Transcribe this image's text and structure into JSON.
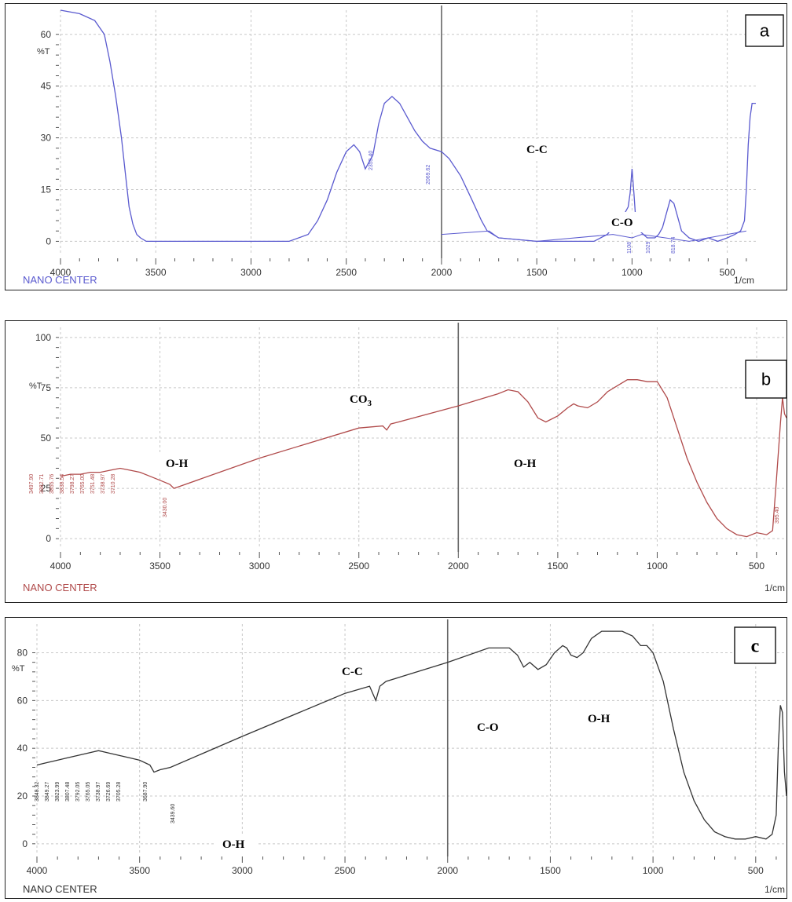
{
  "chart_data": [
    {
      "type": "line",
      "panel_letter": "a",
      "ylabel": "%T",
      "footer_left": "NANO CENTER",
      "footer_right": "1/cm",
      "x_ticks": [
        4000,
        3500,
        3000,
        2500,
        2000,
        1500,
        1000,
        500
      ],
      "y_ticks": [
        0,
        15,
        30,
        45,
        60
      ],
      "xlim": [
        4000,
        350
      ],
      "ylim": [
        -4,
        67
      ],
      "line_color": "#5a5acf",
      "series": [
        {
          "x": [
            4000,
            3900,
            3820,
            3770,
            3740,
            3710,
            3680,
            3660,
            3640,
            3620,
            3600,
            3580,
            3550,
            3500,
            3000,
            2800,
            2700,
            2650,
            2600,
            2550,
            2500,
            2460,
            2430,
            2400,
            2360,
            2330,
            2300,
            2260,
            2220,
            2180,
            2140,
            2100,
            2060,
            2000,
            1960,
            1900,
            1840,
            1790,
            1760,
            1700,
            1500,
            1200,
            1130,
            1100,
            1070,
            1040,
            1020,
            1010,
            1000,
            990,
            980,
            960,
            940,
            920,
            900,
            880,
            860,
            840,
            820,
            800,
            780,
            760,
            740,
            700,
            650,
            600,
            550,
            500,
            460,
            430,
            410,
            400,
            390,
            380,
            370,
            360,
            350
          ],
          "y": [
            67,
            66,
            64,
            60,
            52,
            42,
            30,
            20,
            10,
            5,
            2,
            1,
            0,
            0,
            0,
            0,
            2,
            6,
            12,
            20,
            26,
            28,
            26,
            21,
            25,
            34,
            40,
            42,
            40,
            36,
            32,
            29,
            27,
            26,
            24,
            19,
            12,
            6,
            3,
            1,
            0,
            0,
            2,
            4,
            6,
            8,
            10,
            14,
            21,
            14,
            6,
            3,
            2,
            1,
            1,
            1,
            2,
            4,
            8,
            12,
            11,
            7,
            3,
            1,
            0,
            1,
            0,
            1,
            2,
            3,
            6,
            15,
            28,
            36,
            40,
            40,
            40
          ]
        }
      ],
      "peak_labels": [
        "2359.40",
        "2069.62",
        "1108",
        "1029",
        "818.74"
      ],
      "annotations": [
        "C-C",
        "C-O"
      ]
    },
    {
      "type": "line",
      "panel_letter": "b",
      "ylabel": "%T",
      "footer_left": "NANO CENTER",
      "footer_right": "1/cm",
      "x_ticks": [
        4000,
        3500,
        3000,
        2500,
        2000,
        1500,
        1000,
        500
      ],
      "y_ticks": [
        0,
        25,
        50,
        75,
        100
      ],
      "xlim": [
        4000,
        350
      ],
      "ylim": [
        -5,
        105
      ],
      "line_color": "#b04a4a",
      "series": [
        {
          "x": [
            4000,
            3950,
            3900,
            3850,
            3800,
            3750,
            3700,
            3650,
            3600,
            3550,
            3500,
            3450,
            3430,
            3400,
            3000,
            2500,
            2380,
            2360,
            2340,
            2300,
            2000,
            1800,
            1750,
            1700,
            1650,
            1600,
            1560,
            1500,
            1450,
            1420,
            1400,
            1350,
            1300,
            1250,
            1200,
            1150,
            1100,
            1050,
            1000,
            950,
            900,
            850,
            800,
            750,
            700,
            650,
            600,
            550,
            500,
            450,
            420,
            400,
            380,
            370,
            360,
            350
          ],
          "y": [
            31,
            32,
            32,
            33,
            33,
            34,
            35,
            34,
            33,
            31,
            29,
            27,
            25,
            26,
            40,
            55,
            56,
            54,
            57,
            58,
            66,
            72,
            74,
            73,
            68,
            60,
            58,
            61,
            65,
            67,
            66,
            65,
            68,
            73,
            76,
            79,
            79,
            78,
            78,
            70,
            55,
            40,
            28,
            18,
            10,
            5,
            2,
            1,
            3,
            2,
            4,
            30,
            58,
            70,
            62,
            60
          ]
        }
      ],
      "peak_labels": [
        "3497.90",
        "3882.71",
        "3855.76",
        "3838.54",
        "3798.27",
        "3765.00",
        "3751.48",
        "3738.97",
        "3710.28",
        "3430.00",
        "395.40"
      ],
      "annotations": [
        "CO3",
        "O-H",
        "O-H"
      ]
    },
    {
      "type": "line",
      "panel_letter": "c",
      "ylabel": "%T",
      "footer_left": "NANO CENTER",
      "footer_right": "1/cm",
      "x_ticks": [
        4000,
        3500,
        3000,
        2500,
        2000,
        1500,
        1000,
        500
      ],
      "y_ticks": [
        0,
        20,
        40,
        60,
        80
      ],
      "xlim": [
        4000,
        350
      ],
      "ylim": [
        -4,
        92
      ],
      "line_color": "#333333",
      "series": [
        {
          "x": [
            4000,
            3950,
            3900,
            3850,
            3800,
            3750,
            3700,
            3650,
            3600,
            3550,
            3500,
            3450,
            3430,
            3400,
            3350,
            3000,
            2500,
            2380,
            2350,
            2330,
            2300,
            2000,
            1800,
            1700,
            1660,
            1630,
            1600,
            1560,
            1520,
            1480,
            1440,
            1420,
            1400,
            1370,
            1340,
            1300,
            1250,
            1200,
            1150,
            1100,
            1060,
            1030,
            1000,
            950,
            900,
            850,
            800,
            750,
            700,
            650,
            600,
            550,
            500,
            450,
            420,
            400,
            390,
            380,
            370,
            360,
            350
          ],
          "y": [
            33,
            34,
            35,
            36,
            37,
            38,
            39,
            38,
            37,
            36,
            35,
            33,
            30,
            31,
            32,
            45,
            63,
            66,
            60,
            66,
            68,
            76,
            82,
            82,
            79,
            74,
            76,
            73,
            75,
            80,
            83,
            82,
            79,
            78,
            80,
            86,
            89,
            89,
            89,
            87,
            83,
            83,
            80,
            68,
            48,
            30,
            18,
            10,
            5,
            3,
            2,
            2,
            3,
            2,
            4,
            12,
            40,
            58,
            55,
            30,
            20
          ]
        }
      ],
      "peak_labels": [
        "3848.32",
        "3849.27",
        "3823.99",
        "3807.48",
        "3792.05",
        "3765.05",
        "3738.97",
        "3726.69",
        "3705.28",
        "3687.90",
        "3439.60"
      ],
      "annotations": [
        "C-C",
        "C-O",
        "O-H",
        "O-H"
      ]
    }
  ]
}
